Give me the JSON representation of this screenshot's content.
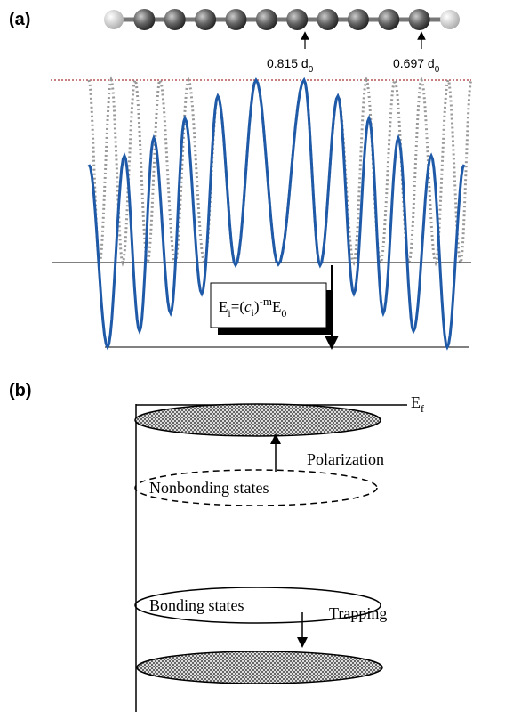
{
  "panel_a": {
    "label": "(a)",
    "bond_labels": [
      {
        "text": "0.815 d",
        "sub": "0"
      },
      {
        "text": "0.697 d",
        "sub": "0"
      }
    ],
    "formula": [
      {
        "text": "E"
      },
      {
        "sub": "i"
      },
      {
        "text": "=("
      },
      {
        "italic": "c"
      },
      {
        "sub": "i"
      },
      {
        "text": ")"
      },
      {
        "sup": "-m"
      },
      {
        "text": "E"
      },
      {
        "sub": "0"
      }
    ]
  },
  "panel_b": {
    "label": "(b)",
    "fermi": {
      "text": "E",
      "sub": "f"
    },
    "polarization": "Polarization",
    "nonbonding": "Nonbonding states",
    "bonding": "Bonding states",
    "trapping": "Trapping"
  }
}
